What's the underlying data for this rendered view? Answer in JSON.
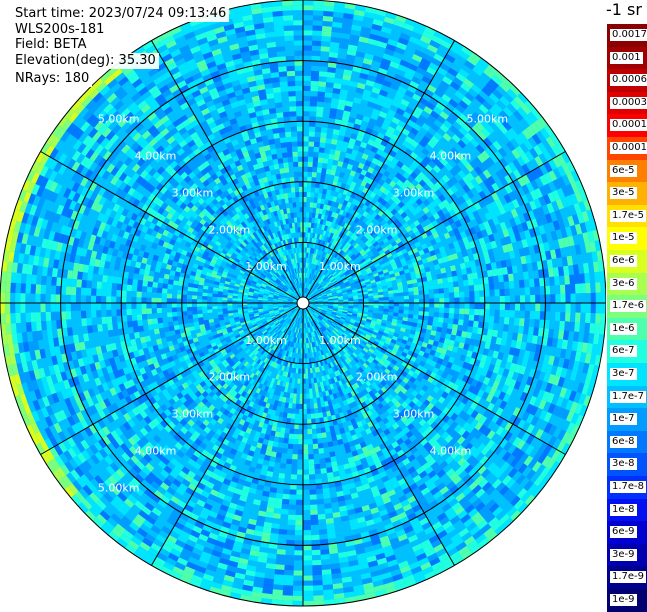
{
  "header": {
    "start_time": "Start time: 2023/07/24 09:13:46",
    "instrument": "WLS200s-181",
    "field": "Field: BETA",
    "elevation": "Elevation(deg): 35.30",
    "nrays": "NRays: 180"
  },
  "units_label": "-1 sr",
  "chart_data": {
    "type": "heatmap",
    "projection": "polar-ppi",
    "field": "BETA",
    "elevation_deg": 35.3,
    "nrays": 180,
    "max_range_km": 5.0,
    "range_rings_km": [
      1,
      2,
      3,
      4,
      5
    ],
    "spoke_angles_deg": [
      0,
      30,
      60,
      90,
      120,
      150,
      180,
      210,
      240,
      270,
      300,
      330
    ],
    "ring_labels": [
      {
        "text": "1.00km",
        "range_km": 1,
        "azimuth_deg": 315
      },
      {
        "text": "1.00km",
        "range_km": 1,
        "azimuth_deg": 45
      },
      {
        "text": "1.00km",
        "range_km": 1,
        "azimuth_deg": 225
      },
      {
        "text": "1.00km",
        "range_km": 1,
        "azimuth_deg": 135
      },
      {
        "text": "2.00km",
        "range_km": 2,
        "azimuth_deg": 315
      },
      {
        "text": "2.00km",
        "range_km": 2,
        "azimuth_deg": 45
      },
      {
        "text": "2.00km",
        "range_km": 2,
        "azimuth_deg": 225
      },
      {
        "text": "2.00km",
        "range_km": 2,
        "azimuth_deg": 135
      },
      {
        "text": "3.00km",
        "range_km": 3,
        "azimuth_deg": 315
      },
      {
        "text": "3.00km",
        "range_km": 3,
        "azimuth_deg": 45
      },
      {
        "text": "3.00km",
        "range_km": 3,
        "azimuth_deg": 225
      },
      {
        "text": "3.00km",
        "range_km": 3,
        "azimuth_deg": 135
      },
      {
        "text": "4.00km",
        "range_km": 4,
        "azimuth_deg": 315
      },
      {
        "text": "4.00km",
        "range_km": 4,
        "azimuth_deg": 45
      },
      {
        "text": "4.00km",
        "range_km": 4,
        "azimuth_deg": 225
      },
      {
        "text": "4.00km",
        "range_km": 4,
        "azimuth_deg": 135
      },
      {
        "text": "5.00km",
        "range_km": 5,
        "azimuth_deg": 315
      },
      {
        "text": "5.00km",
        "range_km": 5,
        "azimuth_deg": 45
      },
      {
        "text": "5.00km",
        "range_km": 5,
        "azimuth_deg": 225
      }
    ],
    "colorbar": {
      "entries": [
        {
          "label": "0.0017",
          "color": "#8b0000"
        },
        {
          "label": "0.001",
          "color": "#a00000"
        },
        {
          "label": "0.0006",
          "color": "#c00000"
        },
        {
          "label": "0.0003",
          "color": "#e00000"
        },
        {
          "label": "0.00017",
          "color": "#ff0000"
        },
        {
          "label": "0.0001",
          "color": "#ff4500"
        },
        {
          "label": "6e-5",
          "color": "#ff7f00"
        },
        {
          "label": "3e-5",
          "color": "#ffb000"
        },
        {
          "label": "1.7e-5",
          "color": "#ffe000"
        },
        {
          "label": "1e-5",
          "color": "#ffff00"
        },
        {
          "label": "6e-6",
          "color": "#d8ff20"
        },
        {
          "label": "3e-6",
          "color": "#a8ff50"
        },
        {
          "label": "1.7e-6",
          "color": "#7cff7c"
        },
        {
          "label": "1e-6",
          "color": "#4effae"
        },
        {
          "label": "6e-7",
          "color": "#20ffe0"
        },
        {
          "label": "3e-7",
          "color": "#00e4ff"
        },
        {
          "label": "1.7e-7",
          "color": "#00c0ff"
        },
        {
          "label": "1e-7",
          "color": "#009cff"
        },
        {
          "label": "6e-8",
          "color": "#0078ff"
        },
        {
          "label": "3e-8",
          "color": "#0054ff"
        },
        {
          "label": "1.7e-8",
          "color": "#0030ff"
        },
        {
          "label": "1e-8",
          "color": "#0010f0"
        },
        {
          "label": "6e-9",
          "color": "#0000d0"
        },
        {
          "label": "3e-9",
          "color": "#0000b0"
        },
        {
          "label": "1.7e-9",
          "color": "#000090"
        },
        {
          "label": "1e-9",
          "color": "#000070"
        }
      ]
    }
  }
}
